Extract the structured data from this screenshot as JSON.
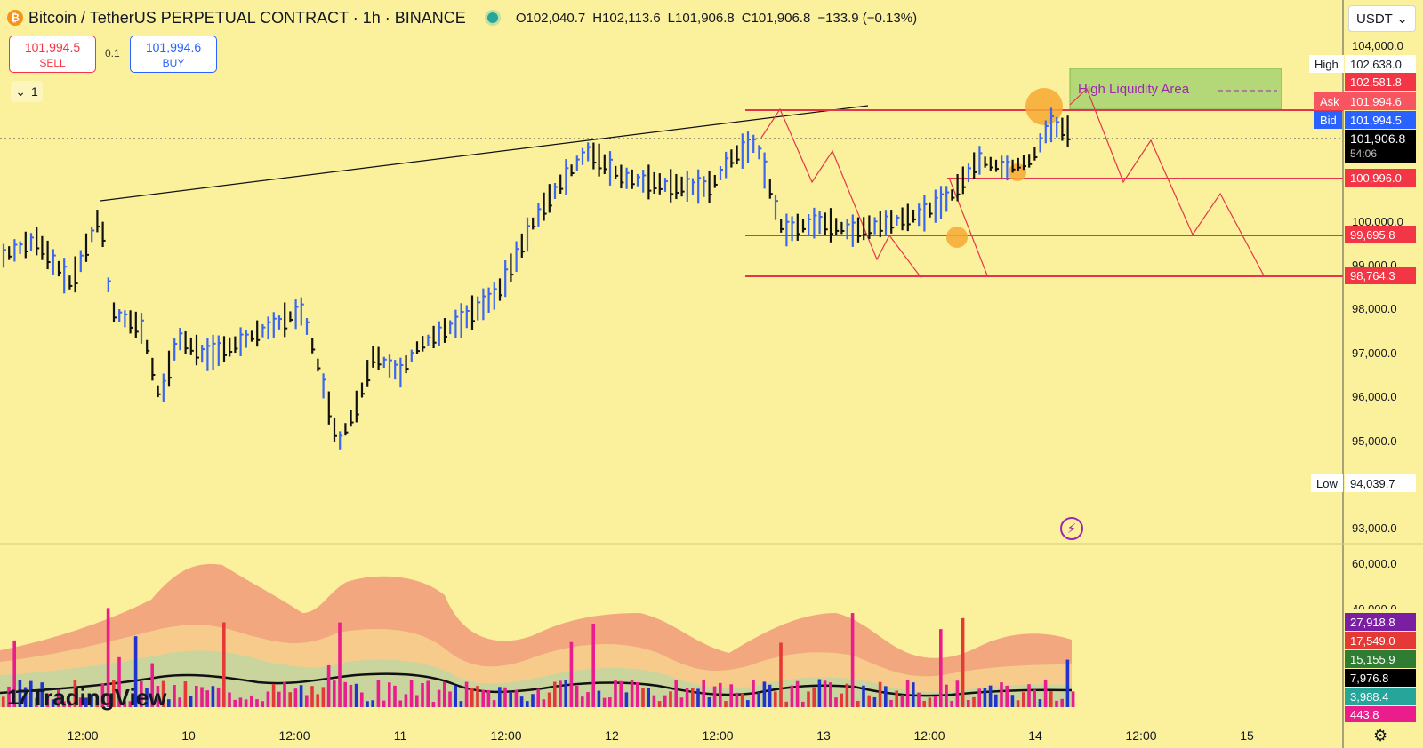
{
  "header": {
    "symbol": "Bitcoin / TetherUS PERPETUAL CONTRACT · 1h · BINANCE",
    "open": "O102,040.7",
    "high": "H102,113.6",
    "low": "L101,906.8",
    "close": "C101,906.8",
    "change": "−133.9 (−0.13%)"
  },
  "trade": {
    "sell_price": "101,994.5",
    "sell_label": "SELL",
    "quantity": "0.1",
    "buy_price": "101,994.6",
    "buy_label": "BUY"
  },
  "indicators_count": "1",
  "currency": "USDT",
  "price_axis": [
    "104,000.0",
    "100,000.0",
    "99,000.0",
    "98,000.0",
    "97,000.0",
    "96,000.0",
    "95,000.0",
    "93,000.0"
  ],
  "volume_axis": [
    "60,000.0",
    "40,000.0"
  ],
  "price_tags": {
    "high_label": "High",
    "high_value": "102,638.0",
    "level_1": "102,581.8",
    "ask_label": "Ask",
    "ask_value": "101,994.6",
    "bid_label": "Bid",
    "bid_value": "101,994.5",
    "last": "101,906.8",
    "countdown": "54:06",
    "level_2": "100,996.0",
    "level_3": "99,695.8",
    "level_4": "98,764.3",
    "low_label": "Low",
    "low_value": "94,039.7"
  },
  "volume_tags": [
    "27,918.8",
    "17,549.0",
    "15,155.9",
    "7,976.8",
    "3,988.4",
    "443.8"
  ],
  "time_axis": [
    "12:00",
    "10",
    "12:00",
    "11",
    "12:00",
    "12",
    "12:00",
    "13",
    "12:00",
    "14",
    "12:00",
    "15"
  ],
  "annotation": "High Liquidity Area",
  "logo_text": "TradingView",
  "colors": {
    "background": "#fbf09c",
    "up": "#3a66f0",
    "down": "#111111",
    "level_line": "#e4364a",
    "liquidity_zone": "#9ccf6b",
    "highlight": "#f7a934"
  },
  "chart_data": {
    "type": "ohlc",
    "timeframe": "1h",
    "y_range": [
      93000,
      104500
    ],
    "up_bars_count_visual": "blue = up, black = down",
    "levels": [
      102581.8,
      100996.0,
      99695.8,
      98764.3
    ],
    "last_price": 101906.8
  }
}
